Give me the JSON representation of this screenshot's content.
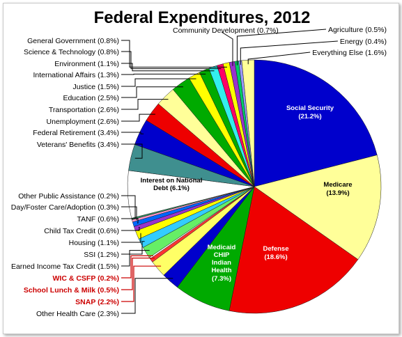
{
  "chart_data": {
    "type": "pie",
    "title": "Federal Expenditures, 2012",
    "unit": "%",
    "slices": [
      {
        "key": "ss",
        "label": "Social Security",
        "value": 21.2,
        "color": "#0000cc",
        "display": "(21.2%)",
        "inside": true
      },
      {
        "key": "medicare",
        "label": "Medicare",
        "value": 13.9,
        "color": "#ffff99",
        "display": "(13.9%)",
        "inside": true
      },
      {
        "key": "defense",
        "label": "Defense",
        "value": 18.6,
        "color": "#ee0000",
        "display": "(18.6%)",
        "inside": true
      },
      {
        "key": "medicaid",
        "label": "Medicaid CHIP Indian Health",
        "value": 7.3,
        "color": "#00aa00",
        "display": "(7.3%)",
        "inside": true
      },
      {
        "key": "other_health",
        "label": "Other Health Care",
        "value": 2.3,
        "color": "#0000cc",
        "display": "(2.3%)",
        "inside": false
      },
      {
        "key": "snap",
        "label": "SNAP",
        "value": 2.2,
        "color": "#ffff66",
        "display": "(2.2%)",
        "inside": false
      },
      {
        "key": "school_lunch",
        "label": "School Lunch & Milk",
        "value": 0.5,
        "color": "#ff3333",
        "display": "(0.5%)",
        "inside": false
      },
      {
        "key": "wic",
        "label": "WIC & CSFP",
        "value": 0.2,
        "color": "#ffffff",
        "display": "(0.2%)",
        "inside": false
      },
      {
        "key": "eitc",
        "label": "Earned Income Tax Credit",
        "value": 1.5,
        "color": "#66ee66",
        "display": "(1.5%)",
        "inside": false
      },
      {
        "key": "ssi",
        "label": "SSI",
        "value": 1.2,
        "color": "#33ccff",
        "display": "(1.2%)",
        "inside": false
      },
      {
        "key": "housing",
        "label": "Housing",
        "value": 1.1,
        "color": "#ffff00",
        "display": "(1.1%)",
        "inside": false
      },
      {
        "key": "ctc",
        "label": "Child Tax Credit",
        "value": 0.6,
        "color": "#9933cc",
        "display": "(0.6%)",
        "inside": false
      },
      {
        "key": "tanf",
        "label": "TANF",
        "value": 0.6,
        "color": "#0066ff",
        "display": "(0.6%)",
        "inside": false
      },
      {
        "key": "foster",
        "label": "Day/Foster Care/Adoption",
        "value": 0.3,
        "color": "#ff99cc",
        "display": "(0.3%)",
        "inside": false
      },
      {
        "key": "other_pa",
        "label": "Other Public Assistance",
        "value": 0.2,
        "color": "#339966",
        "display": "(0.2%)",
        "inside": false
      },
      {
        "key": "interest",
        "label": "Interest on National Debt",
        "value": 6.1,
        "color": "#ffffff",
        "display": "(6.1%)",
        "inside": true
      },
      {
        "key": "veterans",
        "label": "Veterans' Benefits",
        "value": 3.4,
        "color": "#3f8f8f",
        "display": "(3.4%)",
        "inside": false
      },
      {
        "key": "fed_retire",
        "label": "Federal Retirement",
        "value": 3.4,
        "color": "#0000cc",
        "display": "(3.4%)",
        "inside": false
      },
      {
        "key": "unemployment",
        "label": "Unemployment",
        "value": 2.6,
        "color": "#ee0000",
        "display": "(2.6%)",
        "inside": false
      },
      {
        "key": "transportation",
        "label": "Transportation",
        "value": 2.6,
        "color": "#ffff99",
        "display": "(2.6%)",
        "inside": false
      },
      {
        "key": "education",
        "label": "Education",
        "value": 2.5,
        "color": "#00aa00",
        "display": "(2.5%)",
        "inside": false
      },
      {
        "key": "justice",
        "label": "Justice",
        "value": 1.5,
        "color": "#ffff00",
        "display": "(1.5%)",
        "inside": false
      },
      {
        "key": "intl",
        "label": "International Affairs",
        "value": 1.3,
        "color": "#00aa00",
        "display": "(1.3%)",
        "inside": false
      },
      {
        "key": "environment",
        "label": "Environment",
        "value": 1.1,
        "color": "#33eeee",
        "display": "(1.1%)",
        "inside": false
      },
      {
        "key": "science",
        "label": "Science & Technology",
        "value": 0.8,
        "color": "#ff0066",
        "display": "(0.8%)",
        "inside": false
      },
      {
        "key": "gen_gov",
        "label": "General Government",
        "value": 0.8,
        "color": "#ffff00",
        "display": "(0.8%)",
        "inside": false
      },
      {
        "key": "community",
        "label": "Community Development",
        "value": 0.7,
        "color": "#9933cc",
        "display": "(0.7%)",
        "inside": false
      },
      {
        "key": "agriculture",
        "label": "Agriculture",
        "value": 0.5,
        "color": "#00cc66",
        "display": "(0.5%)",
        "inside": false
      },
      {
        "key": "energy",
        "label": "Energy",
        "value": 0.4,
        "color": "#9999ff",
        "display": "(0.4%)",
        "inside": false
      },
      {
        "key": "everything_else",
        "label": "Everything Else",
        "value": 1.6,
        "color": "#ffff99",
        "display": "(1.6%)",
        "inside": false
      }
    ],
    "highlight_color": "#cc0000",
    "highlighted_keys": [
      "wic",
      "school_lunch",
      "snap"
    ]
  }
}
